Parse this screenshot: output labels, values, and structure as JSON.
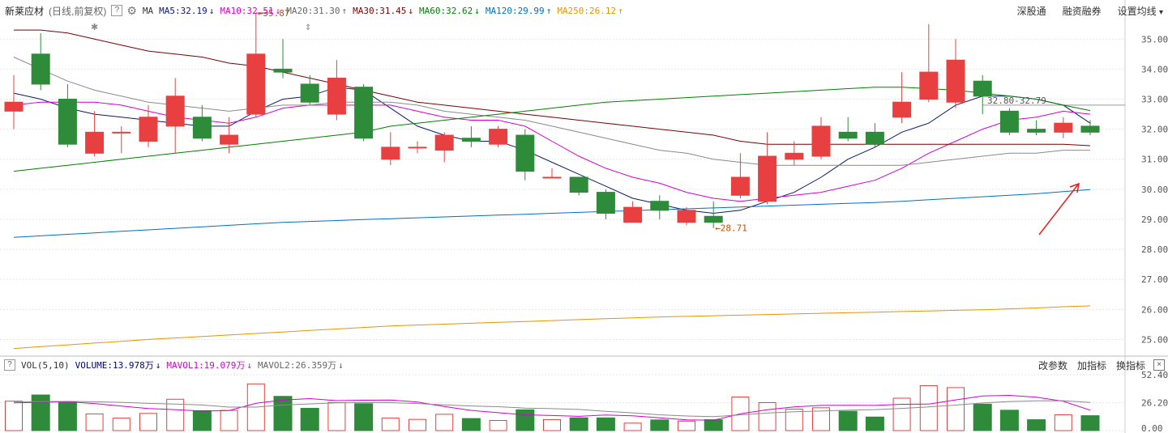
{
  "header": {
    "stock_name": "新莱应材",
    "period": "(日线,前复权)",
    "help": "?",
    "ma_label": "MA",
    "ma_items": [
      {
        "text": "MA5:32.19",
        "arrow": "↓",
        "color": "#0d1a6b"
      },
      {
        "text": "MA10:32.51",
        "arrow": "↓",
        "color": "#d400d4"
      },
      {
        "text": "MA20:31.30",
        "arrow": "↑",
        "color": "#666666"
      },
      {
        "text": "MA30:31.45",
        "arrow": "↓",
        "color": "#7a0000"
      },
      {
        "text": "MA60:32.62",
        "arrow": "↓",
        "color": "#008000"
      },
      {
        "text": "MA120:29.99",
        "arrow": "↑",
        "color": "#0070c0"
      },
      {
        "text": "MA250:26.12",
        "arrow": "↑",
        "color": "#e69500"
      }
    ],
    "menu": [
      "深股通",
      "融资融券",
      "设置均线"
    ],
    "menu_dropdown": "▾"
  },
  "volume_header": {
    "help": "?",
    "label": "VOL(5,10)",
    "items": [
      {
        "text": "VOLUME:13.978万",
        "arrow": "↓",
        "color": "#000080"
      },
      {
        "text": "MAVOL1:19.079万",
        "arrow": "↓",
        "color": "#d400d4"
      },
      {
        "text": "MAVOL2:26.359万",
        "arrow": "↓",
        "color": "#666666"
      }
    ],
    "menu": [
      "改参数",
      "加指标",
      "换指标"
    ],
    "close": "×"
  },
  "annotations": {
    "high": "35.87",
    "low": "28.71",
    "range": "32.80-32.79"
  },
  "colors": {
    "up": "#e84040",
    "down": "#2e8b3a",
    "ma5": "#0d1a6b",
    "ma10": "#d400d4",
    "ma20": "#8a8a8a",
    "ma30": "#7a0000",
    "ma60": "#008000",
    "ma120": "#0070c0",
    "ma250": "#e69500",
    "arrow": "#e02020"
  },
  "chart_data": {
    "type": "candlestick",
    "price_ylim": [
      24.5,
      35.6
    ],
    "price_ticks": [
      "35.00",
      "34.00",
      "33.00",
      "32.00",
      "31.00",
      "30.00",
      "29.00",
      "28.00",
      "27.00",
      "26.00",
      "25.00"
    ],
    "volume_ylim": [
      0,
      52.4
    ],
    "volume_ticks": [
      "52.40",
      "26.20",
      "0.00"
    ],
    "candles": [
      {
        "o": 32.6,
        "c": 32.9,
        "h": 33.8,
        "l": 32.0,
        "v": 27.6
      },
      {
        "o": 34.5,
        "c": 33.5,
        "h": 35.2,
        "l": 33.3,
        "v": 33.4
      },
      {
        "o": 33.0,
        "c": 31.5,
        "h": 33.5,
        "l": 31.4,
        "v": 26.5
      },
      {
        "o": 31.2,
        "c": 31.9,
        "h": 32.6,
        "l": 31.1,
        "v": 15.6
      },
      {
        "o": 31.9,
        "c": 31.9,
        "h": 32.1,
        "l": 31.2,
        "v": 11.7
      },
      {
        "o": 31.6,
        "c": 32.4,
        "h": 32.8,
        "l": 31.4,
        "v": 16.1
      },
      {
        "o": 32.1,
        "c": 33.1,
        "h": 33.7,
        "l": 31.2,
        "v": 29.4
      },
      {
        "o": 32.4,
        "c": 31.7,
        "h": 32.8,
        "l": 31.6,
        "v": 18.7
      },
      {
        "o": 31.5,
        "c": 31.8,
        "h": 32.4,
        "l": 31.2,
        "v": 18.9
      },
      {
        "o": 32.5,
        "c": 34.5,
        "h": 35.87,
        "l": 32.4,
        "v": 43.8
      },
      {
        "o": 34.0,
        "c": 33.9,
        "h": 35.0,
        "l": 33.7,
        "v": 32.1
      },
      {
        "o": 33.5,
        "c": 32.9,
        "h": 33.8,
        "l": 32.8,
        "v": 20.9
      },
      {
        "o": 32.5,
        "c": 33.7,
        "h": 34.3,
        "l": 32.3,
        "v": 26.2
      },
      {
        "o": 33.4,
        "c": 31.7,
        "h": 33.5,
        "l": 31.6,
        "v": 25.2
      },
      {
        "o": 31.0,
        "c": 31.4,
        "h": 31.9,
        "l": 30.8,
        "v": 11.7
      },
      {
        "o": 31.4,
        "c": 31.4,
        "h": 31.6,
        "l": 31.2,
        "v": 10.5
      },
      {
        "o": 31.3,
        "c": 31.8,
        "h": 31.9,
        "l": 30.9,
        "v": 15.3
      },
      {
        "o": 31.7,
        "c": 31.6,
        "h": 32.1,
        "l": 31.4,
        "v": 11.3
      },
      {
        "o": 31.5,
        "c": 32.0,
        "h": 32.1,
        "l": 31.4,
        "v": 9.5
      },
      {
        "o": 31.8,
        "c": 30.6,
        "h": 32.0,
        "l": 30.3,
        "v": 19.5
      },
      {
        "o": 30.4,
        "c": 30.4,
        "h": 30.7,
        "l": 30.4,
        "v": 10.3
      },
      {
        "o": 30.4,
        "c": 29.9,
        "h": 30.4,
        "l": 29.8,
        "v": 12.0
      },
      {
        "o": 29.9,
        "c": 29.2,
        "h": 30.0,
        "l": 29.0,
        "v": 11.9
      },
      {
        "o": 28.9,
        "c": 29.4,
        "h": 29.6,
        "l": 28.9,
        "v": 7.0
      },
      {
        "o": 29.6,
        "c": 29.3,
        "h": 29.8,
        "l": 29.0,
        "v": 10.0
      },
      {
        "o": 28.9,
        "c": 29.3,
        "h": 29.4,
        "l": 28.8,
        "v": 8.9
      },
      {
        "o": 29.1,
        "c": 28.9,
        "h": 29.6,
        "l": 28.71,
        "v": 10.2
      },
      {
        "o": 29.8,
        "c": 30.4,
        "h": 31.2,
        "l": 29.7,
        "v": 31.5
      },
      {
        "o": 29.6,
        "c": 31.1,
        "h": 31.9,
        "l": 29.5,
        "v": 26.2
      },
      {
        "o": 31.0,
        "c": 31.2,
        "h": 31.6,
        "l": 30.8,
        "v": 20.1
      },
      {
        "o": 31.1,
        "c": 32.1,
        "h": 32.4,
        "l": 31.0,
        "v": 21.4
      },
      {
        "o": 31.9,
        "c": 31.7,
        "h": 32.4,
        "l": 31.6,
        "v": 18.1
      },
      {
        "o": 31.9,
        "c": 31.5,
        "h": 32.2,
        "l": 31.4,
        "v": 12.7
      },
      {
        "o": 32.4,
        "c": 32.9,
        "h": 33.9,
        "l": 32.2,
        "v": 30.4
      },
      {
        "o": 33.0,
        "c": 33.9,
        "h": 35.5,
        "l": 32.9,
        "v": 42.1
      },
      {
        "o": 32.9,
        "c": 34.3,
        "h": 35.0,
        "l": 32.7,
        "v": 40.3
      },
      {
        "o": 33.6,
        "c": 33.1,
        "h": 33.8,
        "l": 32.5,
        "v": 24.8
      },
      {
        "o": 32.6,
        "c": 31.9,
        "h": 32.7,
        "l": 31.8,
        "v": 19.1
      },
      {
        "o": 32.0,
        "c": 31.9,
        "h": 32.3,
        "l": 31.8,
        "v": 10.2
      },
      {
        "o": 31.9,
        "c": 32.2,
        "h": 32.4,
        "l": 31.7,
        "v": 14.8
      },
      {
        "o": 32.1,
        "c": 31.9,
        "h": 32.3,
        "l": 31.8,
        "v": 13.978
      }
    ],
    "ma_lines": {
      "ma5": [
        33.2,
        33.0,
        32.7,
        32.5,
        32.4,
        32.3,
        32.2,
        32.1,
        32.1,
        32.6,
        33.0,
        33.1,
        33.4,
        33.3,
        32.7,
        32.1,
        31.8,
        31.6,
        31.6,
        31.3,
        30.9,
        30.5,
        30.1,
        29.7,
        29.5,
        29.3,
        29.2,
        29.3,
        29.6,
        29.9,
        30.4,
        31.0,
        31.4,
        31.9,
        32.2,
        32.8,
        33.1,
        33.1,
        33.0,
        32.8,
        32.2
      ],
      "ma10": [
        32.8,
        32.9,
        32.9,
        32.9,
        32.8,
        32.6,
        32.4,
        32.3,
        32.2,
        32.4,
        32.7,
        32.8,
        32.8,
        32.8,
        32.8,
        32.6,
        32.4,
        32.3,
        32.3,
        32.1,
        31.6,
        31.1,
        30.7,
        30.4,
        30.2,
        29.9,
        29.7,
        29.6,
        29.7,
        29.8,
        29.9,
        30.1,
        30.3,
        30.7,
        31.2,
        31.6,
        32.0,
        32.3,
        32.4,
        32.6,
        32.5
      ],
      "ma20": [
        34.4,
        34.0,
        33.6,
        33.3,
        33.1,
        32.9,
        32.8,
        32.7,
        32.6,
        32.7,
        32.8,
        32.8,
        32.9,
        32.9,
        32.9,
        32.8,
        32.6,
        32.5,
        32.4,
        32.3,
        32.1,
        31.9,
        31.7,
        31.5,
        31.3,
        31.2,
        31.0,
        30.9,
        30.8,
        30.8,
        30.8,
        30.8,
        30.8,
        30.8,
        30.9,
        31.0,
        31.1,
        31.2,
        31.2,
        31.3,
        31.3
      ],
      "ma30": [
        35.3,
        35.3,
        35.2,
        35.0,
        34.8,
        34.6,
        34.5,
        34.4,
        34.2,
        34.1,
        33.9,
        33.7,
        33.5,
        33.3,
        33.1,
        32.9,
        32.8,
        32.7,
        32.6,
        32.5,
        32.4,
        32.3,
        32.2,
        32.1,
        32.0,
        31.9,
        31.8,
        31.6,
        31.5,
        31.5,
        31.5,
        31.5,
        31.5,
        31.5,
        31.5,
        31.5,
        31.5,
        31.5,
        31.5,
        31.5,
        31.45
      ],
      "ma60": [
        30.6,
        30.7,
        30.8,
        30.9,
        31.0,
        31.1,
        31.2,
        31.3,
        31.4,
        31.5,
        31.6,
        31.7,
        31.8,
        31.9,
        32.1,
        32.2,
        32.3,
        32.4,
        32.5,
        32.6,
        32.7,
        32.8,
        32.9,
        32.95,
        33.0,
        33.05,
        33.1,
        33.15,
        33.2,
        33.25,
        33.3,
        33.35,
        33.4,
        33.4,
        33.35,
        33.3,
        33.2,
        33.1,
        33.0,
        32.8,
        32.62
      ],
      "ma120": [
        28.4,
        28.45,
        28.5,
        28.55,
        28.6,
        28.65,
        28.7,
        28.75,
        28.8,
        28.85,
        28.9,
        28.93,
        28.96,
        28.99,
        29.02,
        29.05,
        29.08,
        29.11,
        29.14,
        29.17,
        29.2,
        29.23,
        29.26,
        29.29,
        29.32,
        29.35,
        29.38,
        29.41,
        29.44,
        29.47,
        29.5,
        29.53,
        29.56,
        29.6,
        29.65,
        29.7,
        29.75,
        29.8,
        29.85,
        29.92,
        29.99
      ],
      "ma250": [
        24.7,
        24.76,
        24.82,
        24.88,
        24.94,
        25.0,
        25.05,
        25.1,
        25.15,
        25.2,
        25.25,
        25.3,
        25.35,
        25.4,
        25.45,
        25.48,
        25.51,
        25.54,
        25.57,
        25.6,
        25.63,
        25.66,
        25.69,
        25.72,
        25.75,
        25.77,
        25.79,
        25.81,
        25.83,
        25.85,
        25.87,
        25.89,
        25.91,
        25.93,
        25.95,
        25.97,
        25.99,
        26.02,
        26.05,
        26.09,
        26.12
      ]
    },
    "vol_ma": {
      "mavol1": [
        26.0,
        26.5,
        27.0,
        25.4,
        23.0,
        20.7,
        19.7,
        18.2,
        18.8,
        25.6,
        28.6,
        30.0,
        28.1,
        28.5,
        28.6,
        26.8,
        22.6,
        18.9,
        16.8,
        14.8,
        14.1,
        13.4,
        14.6,
        13.8,
        11.9,
        10.1,
        9.7,
        15.7,
        19.6,
        22.2,
        23.6,
        23.8,
        23.6,
        24.7,
        24.9,
        28.8,
        32.4,
        33.0,
        31.4,
        27.5,
        19.1
      ],
      "mavol2": [
        27.0,
        27.2,
        27.4,
        27.0,
        26.5,
        25.5,
        24.8,
        24.0,
        22.0,
        22.0,
        24.0,
        25.0,
        26.0,
        26.2,
        26.1,
        25.4,
        24.1,
        23.1,
        22.4,
        21.1,
        20.6,
        19.8,
        18.1,
        16.6,
        14.8,
        13.7,
        13.1,
        14.7,
        16.4,
        17.6,
        18.3,
        19.1,
        19.7,
        20.8,
        22.2,
        23.9,
        25.9,
        27.3,
        27.9,
        28.0,
        26.359
      ]
    }
  }
}
